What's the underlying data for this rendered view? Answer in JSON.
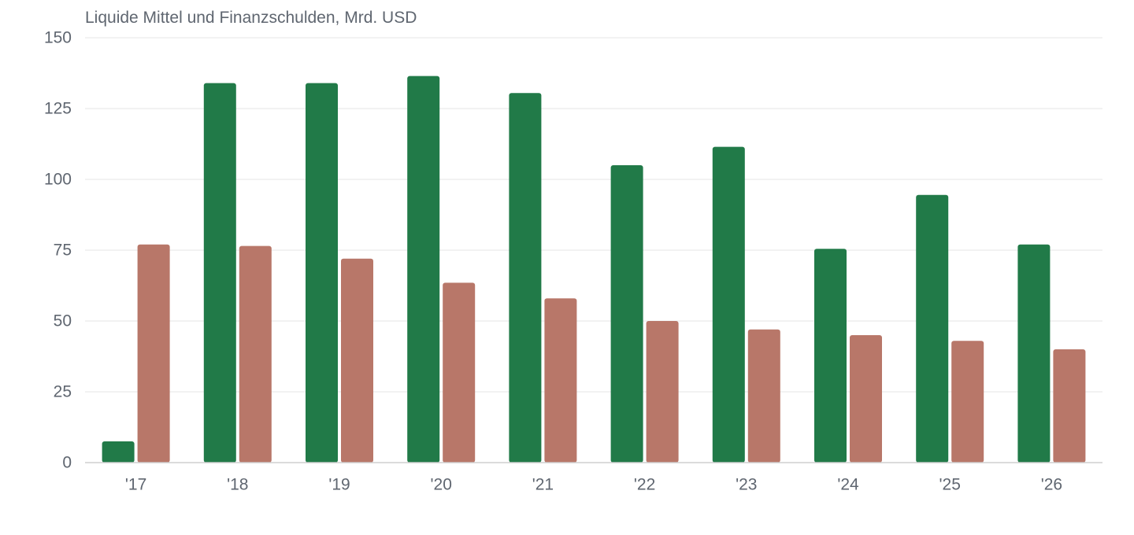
{
  "chart_data": {
    "type": "bar",
    "title": "Liquide Mittel und Finanzschulden, Mrd. USD",
    "xlabel": "",
    "ylabel": "",
    "categories": [
      "'17",
      "'18",
      "'19",
      "'20",
      "'21",
      "'22",
      "'23",
      "'24",
      "'25",
      "'26"
    ],
    "series": [
      {
        "color": "#217a48",
        "values": [
          7.5,
          134,
          134,
          136.5,
          130.5,
          105,
          111.5,
          75.5,
          94.5,
          77
        ]
      },
      {
        "color": "#b87769",
        "values": [
          77,
          76.5,
          72,
          63.5,
          58,
          50,
          47,
          45,
          43,
          40
        ]
      }
    ],
    "ylim": [
      0,
      150
    ],
    "yticks": [
      0,
      25,
      50,
      75,
      100,
      125,
      150
    ],
    "grid": true,
    "legend": "none"
  }
}
